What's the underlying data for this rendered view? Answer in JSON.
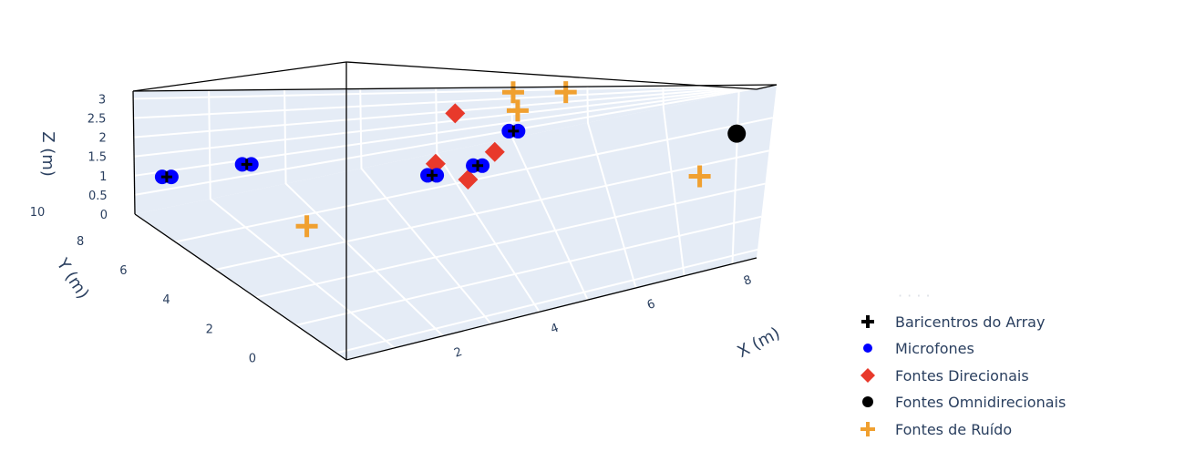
{
  "chart_data": {
    "type": "scatter3d",
    "axes": {
      "x": {
        "title": "X (m)",
        "ticks": [
          "2",
          "4",
          "6",
          "8"
        ]
      },
      "y": {
        "title": "Y (m)",
        "ticks": [
          "0",
          "2",
          "4",
          "6",
          "8",
          "10"
        ]
      },
      "z": {
        "title": "Z (m)",
        "ticks": [
          "0",
          "0.5",
          "1",
          "1.5",
          "2",
          "2.5",
          "3"
        ]
      }
    },
    "series": [
      {
        "name": "Baricentros do Array",
        "marker": "cross",
        "color": "#000000",
        "points": [
          {
            "x": 0.3,
            "y": 9.5,
            "z": 1.0
          },
          {
            "x": 1.4,
            "y": 9.6,
            "z": 1.0
          },
          {
            "x": 3.5,
            "y": 7.0,
            "z": 0.8
          },
          {
            "x": 4.2,
            "y": 7.2,
            "z": 0.8
          },
          {
            "x": 4.9,
            "y": 8.8,
            "z": 1.2
          }
        ]
      },
      {
        "name": "Microfones",
        "marker": "circle",
        "color": "#0000ff",
        "points": [
          {
            "x": 0.3,
            "y": 9.5,
            "z": 1.0
          },
          {
            "x": 1.4,
            "y": 9.6,
            "z": 1.0
          },
          {
            "x": 3.5,
            "y": 7.0,
            "z": 0.8
          },
          {
            "x": 4.2,
            "y": 7.2,
            "z": 0.8
          },
          {
            "x": 4.9,
            "y": 8.8,
            "z": 1.2
          }
        ]
      },
      {
        "name": "Fontes Direcionais",
        "marker": "diamond",
        "color": "#e8392b",
        "points": [
          {
            "x": 4.2,
            "y": 9.6,
            "z": 2.0
          },
          {
            "x": 3.6,
            "y": 7.3,
            "z": 1.0
          },
          {
            "x": 4.0,
            "y": 6.8,
            "z": 0.6
          },
          {
            "x": 4.5,
            "y": 7.6,
            "z": 1.0
          }
        ]
      },
      {
        "name": "Fontes Omnidirecionais",
        "marker": "circle",
        "color": "#000000",
        "points": [
          {
            "x": 8.0,
            "y": 6.5,
            "z": 0.8
          }
        ]
      },
      {
        "name": "Fontes de Ruído",
        "marker": "cross",
        "color": "#f0a030",
        "points": [
          {
            "x": 5.0,
            "y": 9.8,
            "z": 2.9
          },
          {
            "x": 5.7,
            "y": 9.8,
            "z": 2.8
          },
          {
            "x": 5.0,
            "y": 9.2,
            "z": 2.0
          },
          {
            "x": 1.6,
            "y": 6.8,
            "z": 0.2
          },
          {
            "x": 7.4,
            "y": 3.5,
            "z": 0.8
          }
        ]
      }
    ],
    "legend": {
      "position": "bottom-right"
    }
  }
}
